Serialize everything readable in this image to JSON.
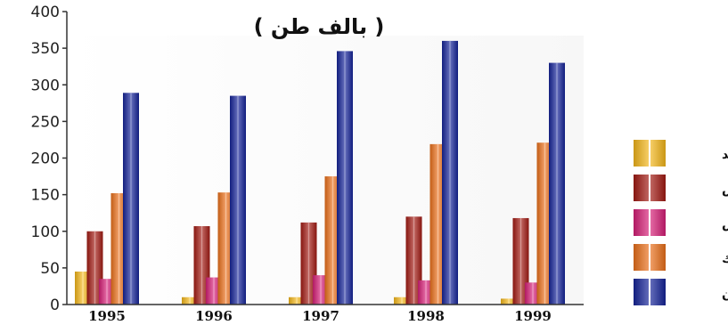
{
  "chart_data": {
    "type": "bar",
    "unit_label": "( بالف طن )",
    "categories": [
      "1995",
      "1996",
      "1997",
      "1998",
      "1999"
    ],
    "ylim": [
      0,
      400
    ],
    "yticks": [
      0,
      50,
      100,
      150,
      200,
      250,
      300,
      350,
      400
    ],
    "grid": false,
    "legend_position": "right",
    "series": [
      {
        "name": "الحديد",
        "color": "#F6B81A",
        "values": [
          45,
          10,
          10,
          10,
          8
        ]
      },
      {
        "name": "الرصاص",
        "color": "#A31A12",
        "values": [
          100,
          107,
          112,
          120,
          118
        ]
      },
      {
        "name": "النحاس",
        "color": "#D81E78",
        "values": [
          35,
          37,
          40,
          33,
          30
        ]
      },
      {
        "name": "الزنك",
        "color": "#EC7019",
        "values": [
          152,
          153,
          175,
          219,
          221
        ]
      },
      {
        "name": "البارتين",
        "color": "#15239A",
        "values": [
          289,
          285,
          346,
          360,
          330
        ]
      }
    ]
  }
}
